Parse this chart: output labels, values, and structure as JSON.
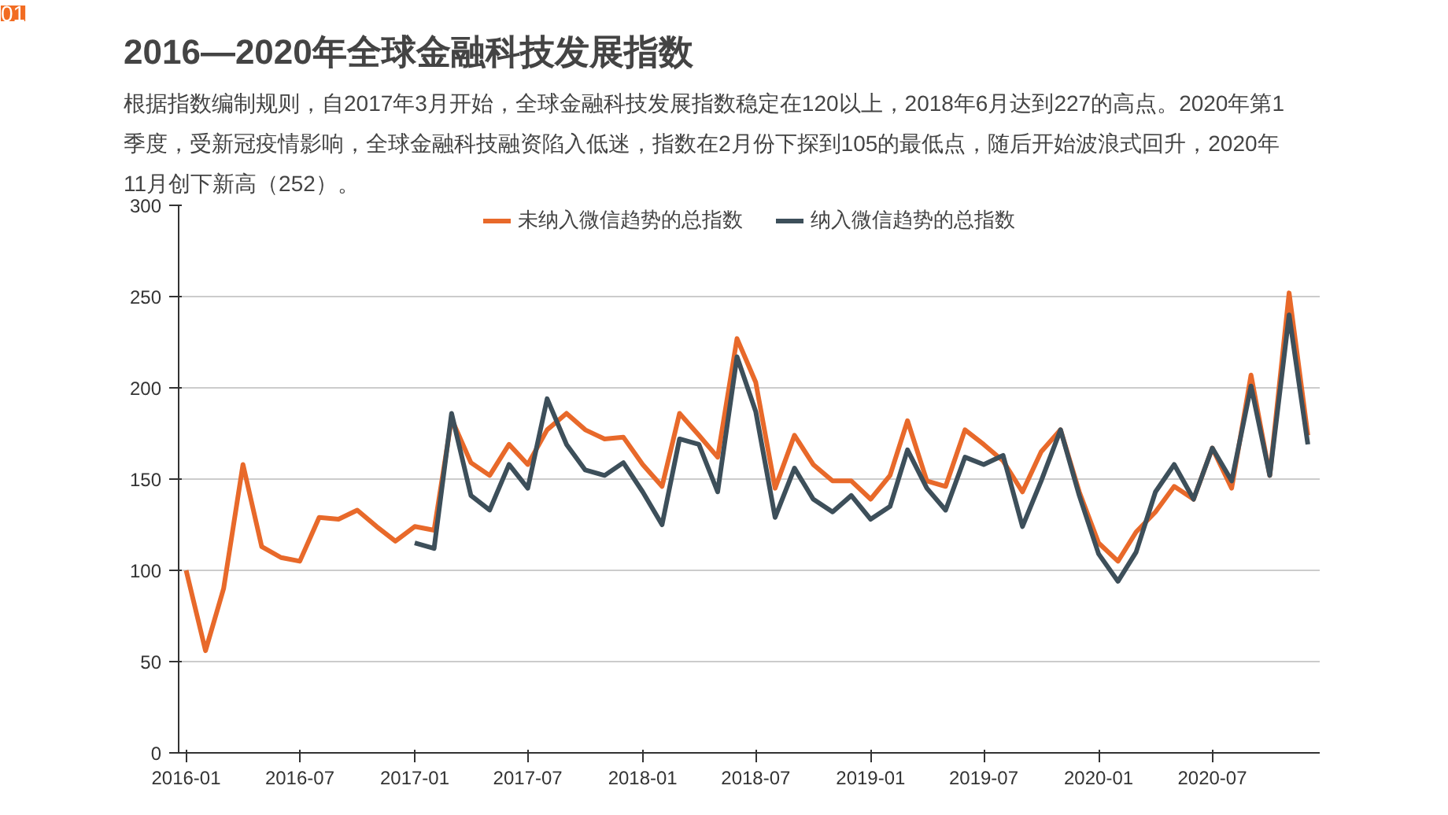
{
  "chart_data": {
    "type": "line",
    "title": "2016—2020年全球金融科技发展指数",
    "annotations": [
      "01",
      "根据指数编制规则，自2017年3月开始，全球金融科技发展指数稳定在120以上，2018年6月达到227的高点。2020年第1季度，受新冠疫情影响，全球金融科技融资陷入低迷，指数在2月份下探到105的最低点，随后开始波浪式回升，2020年11月创下新高（252）。"
    ],
    "series": [
      {
        "name": "未纳入微信趋势的总指数",
        "color": "#e8692a",
        "x": [
          "2016-01",
          "2016-02",
          "2016-03",
          "2016-04",
          "2016-05",
          "2016-06",
          "2016-07",
          "2016-08",
          "2016-09",
          "2016-10",
          "2016-11",
          "2016-12",
          "2017-01",
          "2017-02",
          "2017-03",
          "2017-04",
          "2017-05",
          "2017-06",
          "2017-07",
          "2017-08",
          "2017-09",
          "2017-10",
          "2017-11",
          "2017-12",
          "2018-01",
          "2018-02",
          "2018-03",
          "2018-04",
          "2018-05",
          "2018-06",
          "2018-07",
          "2018-08",
          "2018-09",
          "2018-10",
          "2018-11",
          "2018-12",
          "2019-01",
          "2019-02",
          "2019-03",
          "2019-04",
          "2019-05",
          "2019-06",
          "2019-07",
          "2019-08",
          "2019-09",
          "2019-10",
          "2019-11",
          "2019-12",
          "2020-01",
          "2020-02",
          "2020-03",
          "2020-04",
          "2020-05",
          "2020-06",
          "2020-07",
          "2020-08",
          "2020-09",
          "2020-10",
          "2020-11",
          "2020-12"
        ],
        "values": [
          100,
          56,
          90,
          158,
          113,
          107,
          105,
          129,
          128,
          133,
          124,
          116,
          124,
          122,
          183,
          159,
          152,
          169,
          158,
          177,
          186,
          177,
          172,
          173,
          158,
          146,
          186,
          174,
          162,
          227,
          203,
          145,
          174,
          158,
          149,
          149,
          139,
          152,
          182,
          149,
          146,
          177,
          169,
          160,
          143,
          165,
          177,
          143,
          115,
          105,
          121,
          132,
          146,
          139,
          167,
          145,
          207,
          152,
          252,
          174
        ]
      },
      {
        "name": "纳入微信趋势的总指数",
        "color": "#3d4f5a",
        "x": [
          "2017-01",
          "2017-02",
          "2017-03",
          "2017-04",
          "2017-05",
          "2017-06",
          "2017-07",
          "2017-08",
          "2017-09",
          "2017-10",
          "2017-11",
          "2017-12",
          "2018-01",
          "2018-02",
          "2018-03",
          "2018-04",
          "2018-05",
          "2018-06",
          "2018-07",
          "2018-08",
          "2018-09",
          "2018-10",
          "2018-11",
          "2018-12",
          "2019-01",
          "2019-02",
          "2019-03",
          "2019-04",
          "2019-05",
          "2019-06",
          "2019-07",
          "2019-08",
          "2019-09",
          "2019-10",
          "2019-11",
          "2019-12",
          "2020-01",
          "2020-02",
          "2020-03",
          "2020-04",
          "2020-05",
          "2020-06",
          "2020-07",
          "2020-08",
          "2020-09",
          "2020-10",
          "2020-11",
          "2020-12"
        ],
        "values": [
          115,
          112,
          186,
          141,
          133,
          158,
          145,
          194,
          169,
          155,
          152,
          159,
          143,
          125,
          172,
          169,
          143,
          217,
          187,
          129,
          156,
          139,
          132,
          141,
          128,
          135,
          166,
          145,
          133,
          162,
          158,
          163,
          124,
          149,
          177,
          141,
          109,
          94,
          110,
          143,
          158,
          139,
          167,
          149,
          201,
          152,
          240,
          169
        ]
      }
    ],
    "xlim": [
      "2015-12-20",
      "2020-12-20"
    ],
    "xticks": [
      {
        "value": "2016-01",
        "label": "2016-01"
      },
      {
        "value": "2016-07",
        "label": "2016-07"
      },
      {
        "value": "2017-01",
        "label": "2017-01"
      },
      {
        "value": "2017-07",
        "label": "2017-07"
      },
      {
        "value": "2018-01",
        "label": "2018-01"
      },
      {
        "value": "2018-07",
        "label": "2018-07"
      },
      {
        "value": "2019-01",
        "label": "2019-01"
      },
      {
        "value": "2019-07",
        "label": "2019-07"
      },
      {
        "value": "2020-01",
        "label": "2020-01"
      },
      {
        "value": "2020-07",
        "label": "2020-07"
      }
    ],
    "ylim": [
      0,
      300
    ],
    "yticks": [
      0,
      50,
      100,
      150,
      200,
      250,
      300
    ],
    "grid": "y",
    "legend": "top",
    "marker": "none",
    "line_style": "solid"
  }
}
